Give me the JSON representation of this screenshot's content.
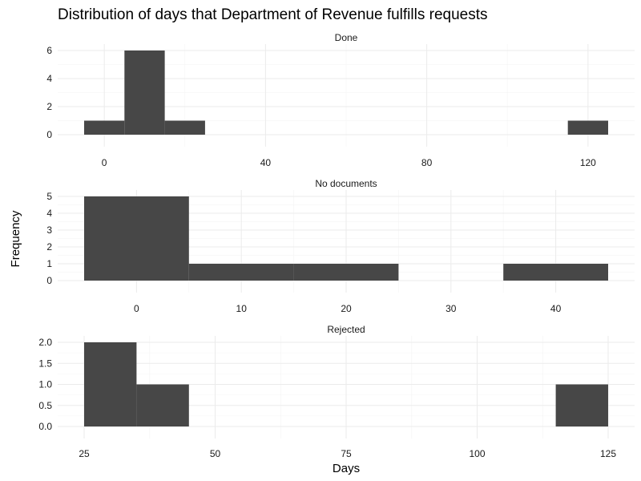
{
  "chart_data": {
    "type": "bar",
    "title": "Distribution of days that Department of Revenue fulfills requests",
    "xlabel": "Days",
    "ylabel": "Frequency",
    "binwidth": 10,
    "grid": true,
    "panels": [
      {
        "name": "Done",
        "xlim": [
          -5,
          125
        ],
        "x_ticks": [
          0,
          40,
          80,
          120
        ],
        "ylim": [
          0,
          6
        ],
        "y_ticks": [
          0,
          2,
          4,
          6
        ],
        "bins": [
          {
            "from": -5,
            "to": 5,
            "count": 1
          },
          {
            "from": 5,
            "to": 15,
            "count": 6
          },
          {
            "from": 15,
            "to": 25,
            "count": 1
          },
          {
            "from": 115,
            "to": 125,
            "count": 1
          }
        ]
      },
      {
        "name": "No documents",
        "xlim": [
          -5,
          45
        ],
        "x_ticks": [
          0,
          10,
          20,
          30,
          40
        ],
        "ylim": [
          0,
          5
        ],
        "y_ticks": [
          0,
          1,
          2,
          3,
          4,
          5
        ],
        "bins": [
          {
            "from": -5,
            "to": 5,
            "count": 5
          },
          {
            "from": 5,
            "to": 15,
            "count": 1
          },
          {
            "from": 15,
            "to": 25,
            "count": 1
          },
          {
            "from": 35,
            "to": 45,
            "count": 1
          }
        ]
      },
      {
        "name": "Rejected",
        "xlim": [
          25,
          125
        ],
        "x_ticks": [
          25,
          50,
          75,
          100,
          125
        ],
        "ylim": [
          0,
          2
        ],
        "y_ticks": [
          0.0,
          0.5,
          1.0,
          1.5,
          2.0
        ],
        "bins": [
          {
            "from": 25,
            "to": 35,
            "count": 2
          },
          {
            "from": 35,
            "to": 45,
            "count": 1
          },
          {
            "from": 115,
            "to": 125,
            "count": 1
          }
        ]
      }
    ],
    "colors": {
      "bar": "#474747",
      "grid": "#ebebeb"
    }
  }
}
